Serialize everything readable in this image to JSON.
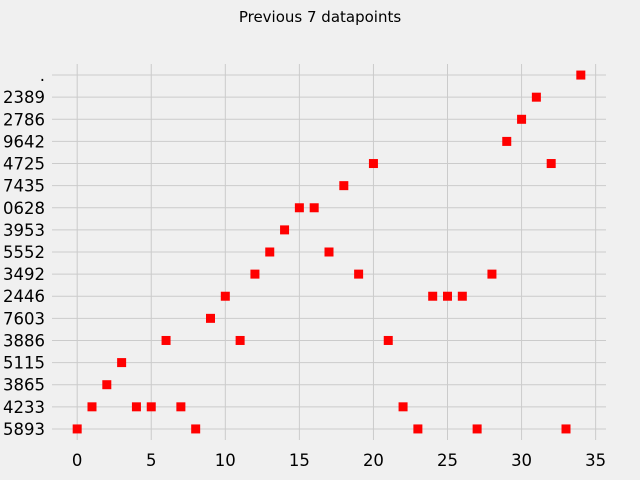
{
  "chart_data": {
    "type": "scatter",
    "title": "Previous 7 datapoints",
    "xlabel": "",
    "ylabel": "",
    "xlim": [
      -1.7,
      35.7
    ],
    "x_ticks": [
      0,
      5,
      10,
      15,
      20,
      25,
      30,
      35
    ],
    "y_categories": [
      "5893",
      "4233",
      "3865",
      "5115",
      "3886",
      "7603",
      "2446",
      "3492",
      "5552",
      "3953",
      "0628",
      "7435",
      "4725",
      "9642",
      "2786",
      "2389",
      "."
    ],
    "grid": true,
    "marker": "square",
    "marker_color": "#ff0000",
    "background": "#f0f0f0",
    "series": [
      {
        "x": [
          0,
          1,
          2,
          3,
          4,
          5,
          6,
          7,
          8,
          9,
          10,
          11,
          12,
          13,
          14,
          15,
          16,
          17,
          18,
          19,
          20,
          21,
          22,
          23,
          24,
          25,
          26,
          27,
          28,
          29,
          30,
          31,
          32,
          33,
          34
        ],
        "y": [
          "5893",
          "4233",
          "3865",
          "5115",
          "4233",
          "4233",
          "3886",
          "4233",
          "5893",
          "7603",
          "2446",
          "3886",
          "3492",
          "5552",
          "3953",
          "0628",
          "0628",
          "5552",
          "7435",
          "3492",
          "4725",
          "3886",
          "4233",
          "5893",
          "2446",
          "2446",
          "2446",
          "5893",
          "3492",
          "9642",
          "2786",
          "2389",
          "4725",
          "5893",
          "."
        ]
      }
    ]
  }
}
